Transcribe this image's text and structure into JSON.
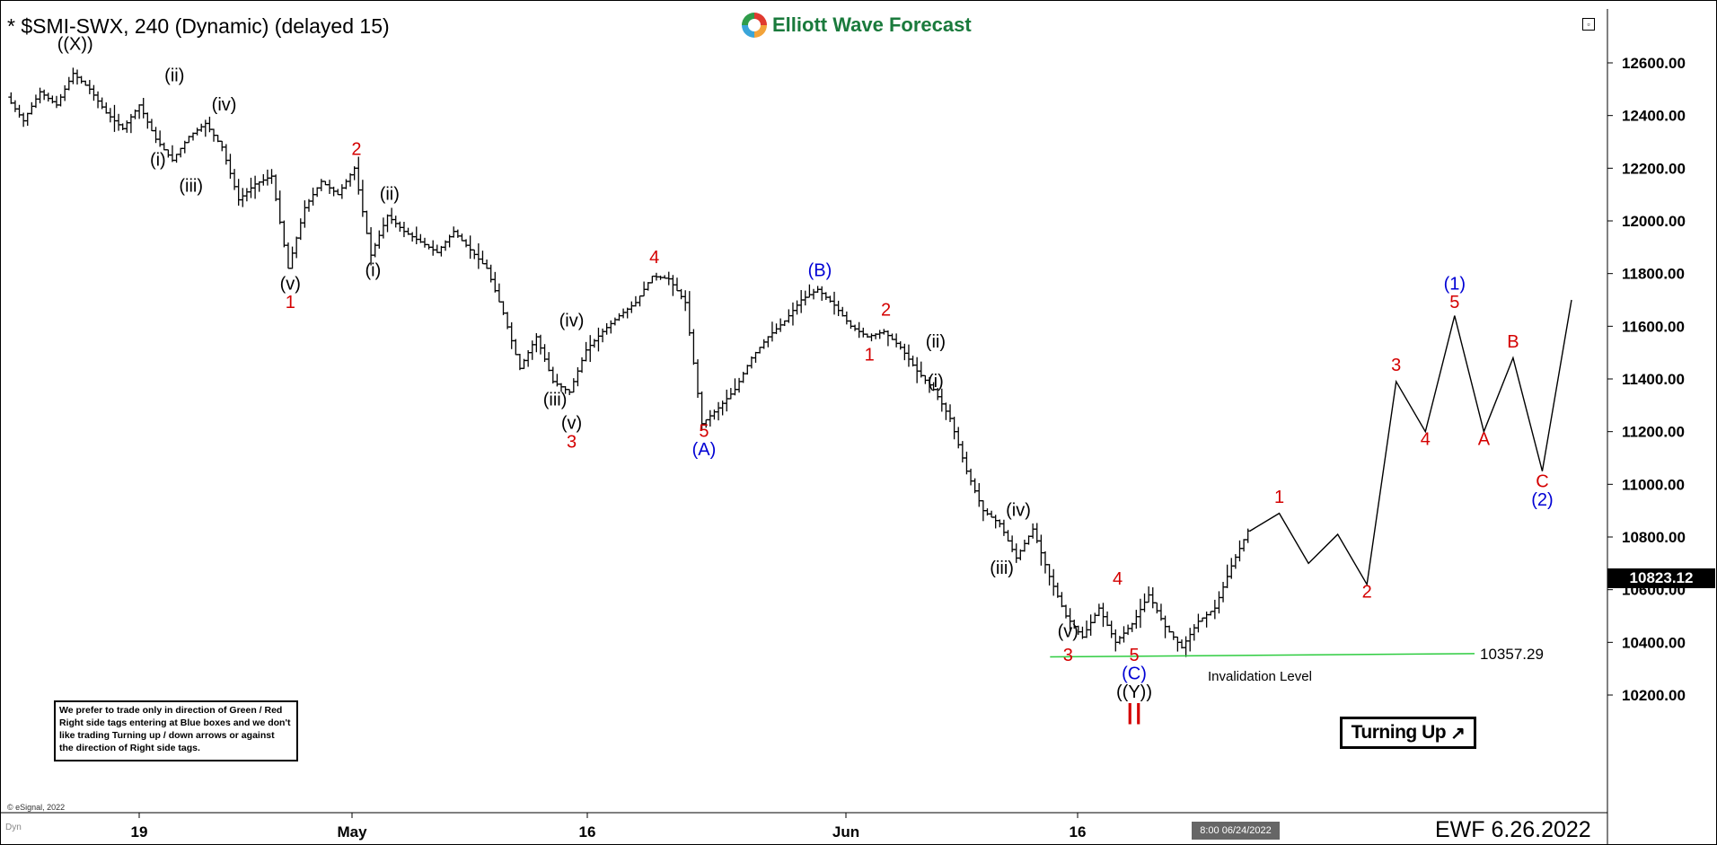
{
  "header": {
    "title": "* $SMI-SWX, 240 (Dynamic) (delayed 15)",
    "logo_text": "Elliott Wave Forecast"
  },
  "chart_data": {
    "type": "ohlc",
    "title": "* $SMI-SWX, 240 (Dynamic) (delayed 15)",
    "y_ticks": [
      10200,
      10400,
      10600,
      10800,
      11000,
      11200,
      11400,
      11600,
      11800,
      12000,
      12200,
      12400,
      12600
    ],
    "y_tick_labels": [
      "10200.00",
      "10400.00",
      "10600.00",
      "10800.00",
      "11000.00",
      "11200.00",
      "11400.00",
      "11600.00",
      "11800.00",
      "12000.00",
      "12200.00",
      "12400.00",
      "12600.00"
    ],
    "ylim": [
      10050,
      12700
    ],
    "x_tick_labels": [
      "19",
      "May",
      "16",
      "Jun",
      "16"
    ],
    "last_price": "10823.12",
    "last_date": "8:00 06/24/2022",
    "invalidation": {
      "value": 10357.29,
      "label": "10357.29",
      "text": "Invalidation Level",
      "color": "#2ecc40"
    },
    "price_path": [
      12470,
      12380,
      12490,
      12440,
      12560,
      12500,
      12410,
      12350,
      12440,
      12310,
      12230,
      12320,
      12370,
      12280,
      12080,
      12140,
      12170,
      11820,
      12050,
      12150,
      12100,
      12200,
      11870,
      12020,
      11960,
      11920,
      11880,
      11960,
      11890,
      11820,
      11650,
      11440,
      11560,
      11390,
      11350,
      11510,
      11580,
      11640,
      11690,
      11790,
      11780,
      11690,
      11230,
      11290,
      11360,
      11480,
      11560,
      11620,
      11700,
      11740,
      11680,
      11600,
      11560,
      11580,
      11520,
      11430,
      11360,
      11250,
      11050,
      10900,
      10850,
      10720,
      10830,
      10650,
      10500,
      10420,
      10530,
      10400,
      10470,
      10580,
      10460,
      10380,
      10480,
      10530,
      10690,
      10823
    ],
    "projection_path": [
      10823,
      10890,
      10700,
      10810,
      10620,
      11390,
      11200,
      11640,
      11200,
      11480,
      11050,
      11700
    ],
    "colors": {
      "red": "#d40000",
      "blue": "#0000d4",
      "black": "#000000",
      "green": "#2ecc40"
    },
    "wave_labels": [
      {
        "text": "((X))",
        "color": "black",
        "i": 4,
        "yv": 12650
      },
      {
        "text": "(i)",
        "color": "black",
        "i": 9,
        "yv": 12210
      },
      {
        "text": "(ii)",
        "color": "black",
        "i": 10,
        "yv": 12530
      },
      {
        "text": "(iii)",
        "color": "black",
        "i": 11,
        "yv": 12110
      },
      {
        "text": "(iv)",
        "color": "black",
        "i": 13,
        "yv": 12420
      },
      {
        "text": "(v)",
        "color": "black",
        "i": 17,
        "yv": 11740
      },
      {
        "text": "1",
        "color": "red",
        "i": 17,
        "yv": 11670
      },
      {
        "text": "2",
        "color": "red",
        "i": 21,
        "yv": 12250
      },
      {
        "text": "(i)",
        "color": "black",
        "i": 22,
        "yv": 11790
      },
      {
        "text": "(ii)",
        "color": "black",
        "i": 23,
        "yv": 12080
      },
      {
        "text": "(iii)",
        "color": "black",
        "i": 33,
        "yv": 11300
      },
      {
        "text": "(iv)",
        "color": "black",
        "i": 34,
        "yv": 11600
      },
      {
        "text": "(v)",
        "color": "black",
        "i": 34,
        "yv": 11210
      },
      {
        "text": "3",
        "color": "red",
        "i": 34,
        "yv": 11140
      },
      {
        "text": "4",
        "color": "red",
        "i": 39,
        "yv": 11840
      },
      {
        "text": "5",
        "color": "red",
        "i": 42,
        "yv": 11180
      },
      {
        "text": "(A)",
        "color": "blue",
        "i": 42,
        "yv": 11110
      },
      {
        "text": "(B)",
        "color": "blue",
        "i": 49,
        "yv": 11790
      },
      {
        "text": "1",
        "color": "red",
        "i": 52,
        "yv": 11470
      },
      {
        "text": "2",
        "color": "red",
        "i": 53,
        "yv": 11640
      },
      {
        "text": "(ii)",
        "color": "black",
        "i": 56,
        "yv": 11520
      },
      {
        "text": "(i)",
        "color": "black",
        "i": 56,
        "yv": 11370
      },
      {
        "text": "(iv)",
        "color": "black",
        "i": 61,
        "yv": 10880
      },
      {
        "text": "(iii)",
        "color": "black",
        "i": 60,
        "yv": 10660
      },
      {
        "text": "(v)",
        "color": "black",
        "i": 64,
        "yv": 10420
      },
      {
        "text": "3",
        "color": "red",
        "i": 64,
        "yv": 10330
      },
      {
        "text": "4",
        "color": "red",
        "i": 67,
        "yv": 10620
      },
      {
        "text": "5",
        "color": "red",
        "i": 68,
        "yv": 10330
      },
      {
        "text": "(C)",
        "color": "blue",
        "i": 68,
        "yv": 10260
      },
      {
        "text": "((Y))",
        "color": "black",
        "i": 68,
        "yv": 10190
      },
      {
        "text": "II",
        "color": "red",
        "i": 68,
        "yv": 10090
      }
    ],
    "projection_labels": [
      {
        "text": "1",
        "color": "red",
        "j": 1,
        "yv": 10930
      },
      {
        "text": "2",
        "color": "red",
        "j": 4,
        "yv": 10570
      },
      {
        "text": "3",
        "color": "red",
        "j": 5,
        "yv": 11430
      },
      {
        "text": "4",
        "color": "red",
        "j": 6,
        "yv": 11150
      },
      {
        "text": "(1)",
        "color": "blue",
        "j": 7,
        "yv": 11740
      },
      {
        "text": "5",
        "color": "red",
        "j": 7,
        "yv": 11670
      },
      {
        "text": "A",
        "color": "red",
        "j": 8,
        "yv": 11150
      },
      {
        "text": "B",
        "color": "red",
        "j": 9,
        "yv": 11520
      },
      {
        "text": "C",
        "color": "red",
        "j": 10,
        "yv": 10990
      },
      {
        "text": "(2)",
        "color": "blue",
        "j": 10,
        "yv": 10920
      }
    ]
  },
  "note": {
    "lines": [
      "We prefer to trade only in direction of Green / Red",
      "Right side tags entering at Blue boxes and we don't",
      "like trading Turning up / down arrows or against",
      "the direction of Right side tags."
    ]
  },
  "badge": {
    "label": "Turning Up",
    "arrow": "↗"
  },
  "footer": {
    "copyright": "© eSignal, 2022",
    "ewf": "EWF 6.26.2022",
    "dyn": "Dyn"
  }
}
